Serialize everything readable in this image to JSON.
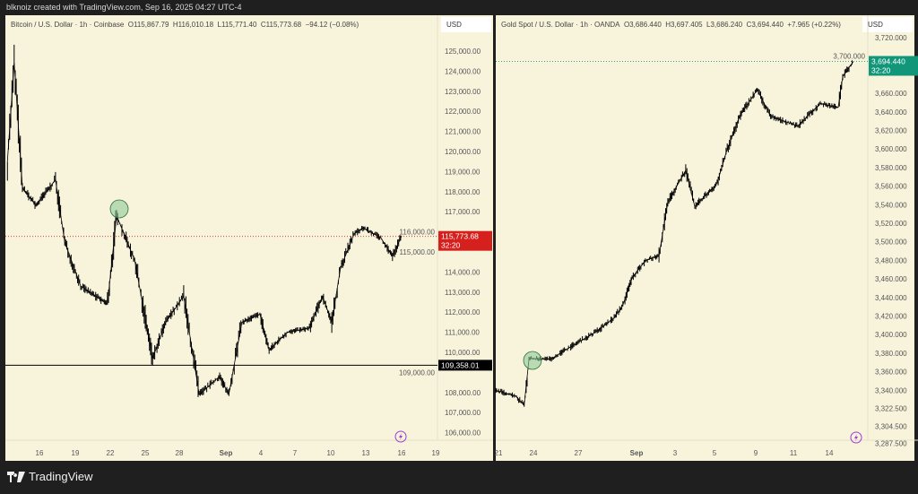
{
  "header": {
    "attribution": "blknoiz created with TradingView.com, Sep 16, 2025 04:27 UTC-4"
  },
  "footer": {
    "brand": "TradingView"
  },
  "colors": {
    "background": "#f8f4dc",
    "candles": "#000000",
    "btc_price_tag": "#d5201e",
    "gold_price_tag": "#11967a",
    "support_line": "#000000",
    "highlight_circle": "#8fc99a",
    "lightning_icon": "#9c3bd6"
  },
  "chart_data": [
    {
      "type": "line",
      "title": "Bitcoin / U.S. Dollar · 1h · Coinbase",
      "ohlc": {
        "open": "O115,867.79",
        "high": "H116,010.18",
        "low": "L115,771.40",
        "close": "C115,773.68",
        "change": "−94.12 (−0.08%)"
      },
      "currency": "USD",
      "ylim": [
        105500,
        125900
      ],
      "y_ticks": [
        "125,000.00",
        "124,000.00",
        "123,000.00",
        "122,000.00",
        "121,000.00",
        "120,000.00",
        "119,000.00",
        "118,000.00",
        "117,000.00",
        "116,000.00",
        "115,000.00",
        "114,000.00",
        "113,000.00",
        "112,000.00",
        "111,000.00",
        "110,000.00",
        "109,000.00",
        "108,000.00",
        "107,000.00",
        "106,000.00"
      ],
      "x_ticks": [
        "16",
        "19",
        "22",
        "25",
        "28",
        "Sep",
        "4",
        "7",
        "10",
        "13",
        "16",
        "19"
      ],
      "current_price": {
        "label": "115,773.68",
        "countdown": "32:20",
        "value": 115773.68
      },
      "horizontal_line": {
        "label": "109,358.01",
        "value": 109358.01
      },
      "highlight": {
        "x": "2025-08-22T15:00",
        "y": 116800
      },
      "series": [
        {
          "points": [
            [
              "2025-08-13T06:00",
              119500
            ],
            [
              "2025-08-13T20:00",
              124400
            ],
            [
              "2025-08-14T13:00",
              118200
            ],
            [
              "2025-08-15T17:00",
              117300
            ],
            [
              "2025-08-17T09:00",
              118600
            ],
            [
              "2025-08-18T04:00",
              115500
            ],
            [
              "2025-08-19T13:00",
              113300
            ],
            [
              "2025-08-21T20:00",
              112400
            ],
            [
              "2025-08-22T15:00",
              116800
            ],
            [
              "2025-08-24T04:00",
              114600
            ],
            [
              "2025-08-25T17:00",
              109700
            ],
            [
              "2025-08-26T20:00",
              111500
            ],
            [
              "2025-08-28T09:00",
              112800
            ],
            [
              "2025-08-29T17:00",
              107900
            ],
            [
              "2025-08-31T11:00",
              108800
            ],
            [
              "2025-09-01T06:00",
              107900
            ],
            [
              "2025-09-02T09:00",
              111500
            ],
            [
              "2025-09-03T22:00",
              111900
            ],
            [
              "2025-09-04T17:00",
              110100
            ],
            [
              "2025-09-06T06:00",
              111000
            ],
            [
              "2025-09-08T04:00",
              111200
            ],
            [
              "2025-09-09T07:00",
              112800
            ],
            [
              "2025-09-10T02:00",
              111500
            ],
            [
              "2025-09-10T20:00",
              114200
            ],
            [
              "2025-09-12T00:00",
              115900
            ],
            [
              "2025-09-12T18:00",
              116200
            ],
            [
              "2025-09-14T07:00",
              115700
            ],
            [
              "2025-09-15T07:00",
              114800
            ],
            [
              "2025-09-16T02:00",
              115800
            ]
          ]
        }
      ]
    },
    {
      "type": "line",
      "title": "Gold Spot / U.S. Dollar · 1h · OANDA",
      "ohlc": {
        "open": "O3,686.440",
        "high": "H3,697.405",
        "low": "L3,686.240",
        "close": "C3,694.440",
        "change": "+7.965 (+0.22%)"
      },
      "currency": "USD",
      "ylim": [
        3283,
        3730
      ],
      "y_ticks": [
        "3,720.000",
        "3,700.000",
        "3,660.000",
        "3,640.000",
        "3,620.000",
        "3,600.000",
        "3,580.000",
        "3,560.000",
        "3,540.000",
        "3,520.000",
        "3,500.000",
        "3,480.000",
        "3,460.000",
        "3,440.000",
        "3,420.000",
        "3,400.000",
        "3,380.000",
        "3,360.000",
        "3,340.000",
        "3,322.500",
        "3,304.500",
        "3,287.500"
      ],
      "x_ticks": [
        "21",
        "24",
        "27",
        "Sep",
        "3",
        "5",
        "9",
        "11",
        "14"
      ],
      "current_price": {
        "label": "3,694.440",
        "countdown": "32:20",
        "value": 3694.44
      },
      "highlight": {
        "x": "2025-08-23T15:00",
        "y": 3374
      },
      "series": [
        {
          "points": [
            [
              "2025-08-20T18:00",
              3340
            ],
            [
              "2025-08-22T11:00",
              3335
            ],
            [
              "2025-08-23T05:00",
              3326
            ],
            [
              "2025-08-23T15:00",
              3374
            ],
            [
              "2025-08-25T05:00",
              3374
            ],
            [
              "2025-08-26T17:00",
              3389
            ],
            [
              "2025-08-28T13:00",
              3403
            ],
            [
              "2025-08-30T02:00",
              3418
            ],
            [
              "2025-08-30T20:00",
              3432
            ],
            [
              "2025-08-31T15:00",
              3461
            ],
            [
              "2025-09-01T11:00",
              3480
            ],
            [
              "2025-09-02T04:00",
              3485
            ],
            [
              "2025-09-02T15:00",
              3543
            ],
            [
              "2025-09-03T13:00",
              3577
            ],
            [
              "2025-09-04T00:00",
              3538
            ],
            [
              "2025-09-05T06:00",
              3563
            ],
            [
              "2025-09-06T03:00",
              3596
            ],
            [
              "2025-09-07T10:00",
              3635
            ],
            [
              "2025-09-09T02:00",
              3664
            ],
            [
              "2025-09-09T19:00",
              3635
            ],
            [
              "2025-09-11T09:00",
              3625
            ],
            [
              "2025-09-13T06:00",
              3649
            ],
            [
              "2025-09-14T18:00",
              3645
            ],
            [
              "2025-09-15T03:00",
              3678
            ],
            [
              "2025-09-16T00:00",
              3694
            ]
          ]
        }
      ]
    }
  ]
}
